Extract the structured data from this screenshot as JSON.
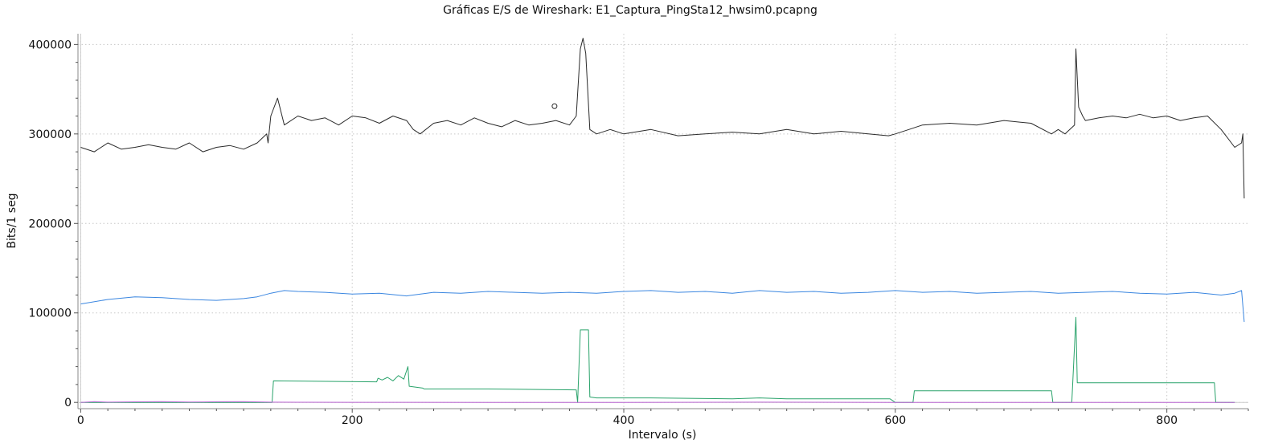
{
  "chart_data": {
    "type": "line",
    "title": "Gráficas E/S de Wireshark: E1_Captura_PingSta12_hwsim0.pcapng",
    "xlabel": "Intervalo (s)",
    "ylabel": "Bits/1 seg",
    "xlim": [
      -2,
      860
    ],
    "ylim": [
      -7000,
      412000
    ],
    "xticks": [
      0,
      200,
      400,
      600,
      800
    ],
    "xtick_labels": [
      "0",
      "200",
      "400",
      "600",
      "800"
    ],
    "yticks": [
      0,
      100000,
      200000,
      300000,
      400000
    ],
    "ytick_labels": [
      "0",
      "100000",
      "200000",
      "300000",
      "400000"
    ],
    "grid": true,
    "series": [
      {
        "color": "#2b2b2b",
        "x": [
          0,
          10,
          20,
          30,
          40,
          50,
          60,
          70,
          80,
          90,
          100,
          110,
          120,
          130,
          137,
          138,
          140,
          145,
          150,
          160,
          170,
          180,
          190,
          200,
          210,
          220,
          230,
          240,
          245,
          250,
          260,
          270,
          280,
          290,
          300,
          310,
          320,
          330,
          340,
          350,
          360,
          365,
          368,
          370,
          372,
          375,
          380,
          390,
          400,
          420,
          440,
          460,
          480,
          500,
          520,
          540,
          560,
          580,
          595,
          600,
          610,
          620,
          640,
          660,
          680,
          700,
          715,
          720,
          725,
          732,
          733,
          735,
          738,
          740,
          750,
          760,
          770,
          780,
          790,
          800,
          810,
          820,
          830,
          840,
          850,
          855,
          856,
          857
        ],
        "values": [
          285000,
          280000,
          290000,
          283000,
          285000,
          288000,
          285000,
          283000,
          290000,
          280000,
          285000,
          287000,
          283000,
          290000,
          300000,
          290000,
          320000,
          340000,
          310000,
          320000,
          315000,
          318000,
          310000,
          320000,
          318000,
          312000,
          320000,
          315000,
          305000,
          300000,
          312000,
          315000,
          310000,
          318000,
          312000,
          308000,
          315000,
          310000,
          312000,
          315000,
          310000,
          320000,
          395000,
          407000,
          390000,
          305000,
          300000,
          305000,
          300000,
          305000,
          298000,
          300000,
          302000,
          300000,
          305000,
          300000,
          303000,
          300000,
          298000,
          300000,
          305000,
          310000,
          312000,
          310000,
          315000,
          312000,
          300000,
          305000,
          300000,
          310000,
          395000,
          330000,
          320000,
          315000,
          318000,
          320000,
          318000,
          322000,
          318000,
          320000,
          315000,
          318000,
          320000,
          305000,
          285000,
          290000,
          300000,
          228000
        ]
      },
      {
        "color": "#3a86e0",
        "x": [
          0,
          20,
          40,
          60,
          80,
          100,
          120,
          130,
          140,
          150,
          160,
          180,
          200,
          220,
          240,
          260,
          280,
          300,
          320,
          340,
          360,
          380,
          400,
          420,
          440,
          460,
          480,
          500,
          520,
          540,
          560,
          580,
          600,
          620,
          640,
          660,
          680,
          700,
          720,
          740,
          760,
          780,
          800,
          820,
          840,
          850,
          855,
          857
        ],
        "values": [
          110000,
          115000,
          118000,
          117000,
          115000,
          114000,
          116000,
          118000,
          122000,
          125000,
          124000,
          123000,
          121000,
          122000,
          119000,
          123000,
          122000,
          124000,
          123000,
          122000,
          123000,
          122000,
          124000,
          125000,
          123000,
          124000,
          122000,
          125000,
          123000,
          124000,
          122000,
          123000,
          125000,
          123000,
          124000,
          122000,
          123000,
          124000,
          122000,
          123000,
          124000,
          122000,
          121000,
          123000,
          120000,
          122000,
          125000,
          90000
        ]
      },
      {
        "color": "#2aa36b",
        "x": [
          0,
          141,
          142,
          218,
          219,
          222,
          226,
          230,
          234,
          238,
          241,
          242,
          252,
          253,
          300,
          365,
          366,
          368,
          374,
          375,
          380,
          420,
          480,
          500,
          520,
          560,
          596,
          600,
          613,
          614,
          700,
          715,
          716,
          730,
          733,
          734,
          760,
          800,
          835,
          836,
          850
        ],
        "values": [
          0,
          0,
          24000,
          23000,
          27000,
          25000,
          28000,
          24000,
          30000,
          26000,
          40000,
          18000,
          16000,
          15000,
          15000,
          14000,
          0,
          81000,
          81000,
          6000,
          5000,
          5000,
          4000,
          5000,
          4000,
          4000,
          4000,
          0,
          0,
          13000,
          13000,
          13000,
          0,
          0,
          95000,
          22000,
          22000,
          22000,
          22000,
          0,
          0
        ]
      },
      {
        "color": "#c06ad8",
        "x": [
          0,
          10,
          20,
          40,
          60,
          80,
          100,
          120,
          140,
          160,
          200,
          300,
          400,
          500,
          600,
          700,
          800,
          850
        ],
        "values": [
          0,
          800,
          300,
          600,
          900,
          400,
          700,
          900,
          300,
          200,
          100,
          0,
          0,
          300,
          0,
          0,
          0,
          0
        ]
      }
    ],
    "markers": [
      {
        "x": 349,
        "y": 331000,
        "shape": "open-circle",
        "color": "#2b2b2b"
      }
    ]
  }
}
